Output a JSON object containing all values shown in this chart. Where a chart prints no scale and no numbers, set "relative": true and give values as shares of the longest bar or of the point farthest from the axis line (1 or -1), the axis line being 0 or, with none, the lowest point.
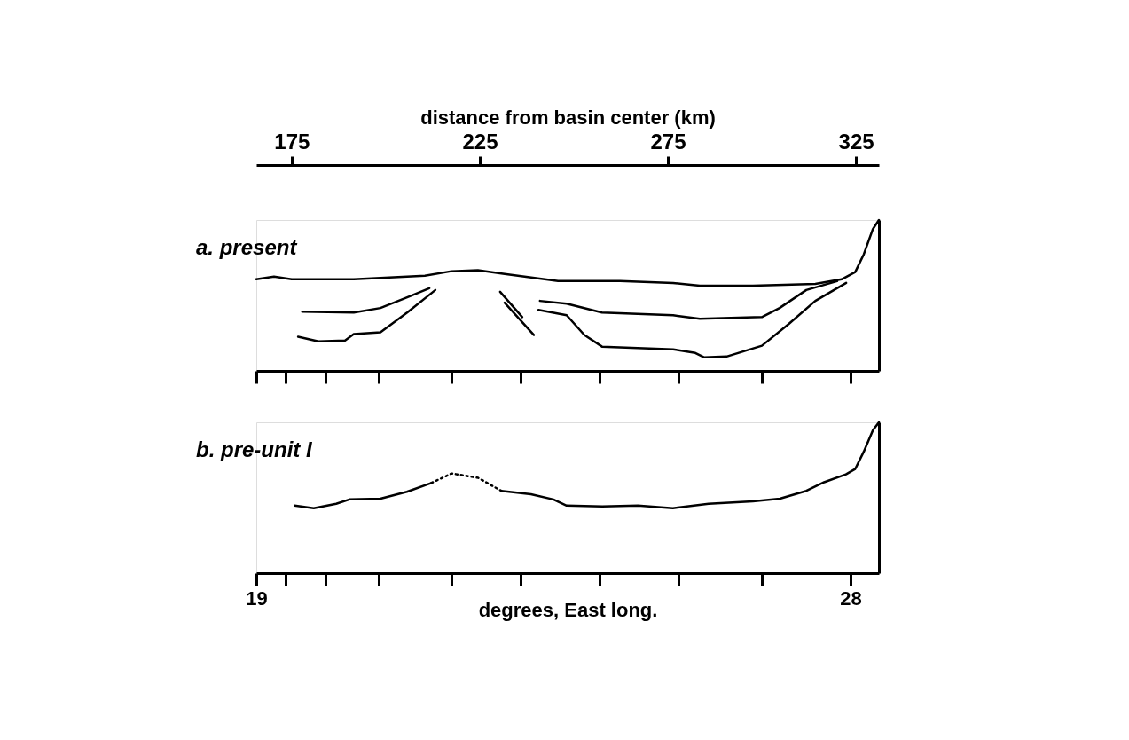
{
  "chart_data": [
    {
      "type": "line",
      "title": "a. present",
      "relative": true,
      "tick_labels": "x",
      "xlabel": "distance from basin center (km)",
      "xlim": [
        165.6,
        331.1
      ],
      "xticks": [
        175,
        225,
        275,
        325
      ],
      "series": [
        {
          "color": "#000000",
          "x": [
            165.6,
            170.3,
            175.0,
            191.5,
            210.4,
            217.5,
            224.5,
            231.6,
            245.8,
            262.3,
            276.4,
            283.5,
            297.6,
            314.2,
            321.2,
            324.8,
            327.1,
            329.5,
            331.1
          ],
          "values": [
            0.607,
            0.625,
            0.607,
            0.607,
            0.631,
            0.661,
            0.667,
            0.643,
            0.595,
            0.595,
            0.583,
            0.565,
            0.565,
            0.577,
            0.607,
            0.655,
            0.774,
            0.94,
            1.0
          ]
        },
        {
          "color": "#000000",
          "x": [
            177.8,
            191.5,
            198.6,
            205.7,
            211.6
          ],
          "values": [
            0.393,
            0.387,
            0.417,
            0.488,
            0.548
          ]
        },
        {
          "color": "#000000",
          "x": [
            176.7,
            182.1,
            189.2,
            191.5,
            198.6,
            205.7,
            213.2
          ],
          "values": [
            0.226,
            0.196,
            0.202,
            0.244,
            0.256,
            0.387,
            0.536
          ]
        },
        {
          "color": "#000000",
          "x": [
            230.4,
            236.3
          ],
          "values": [
            0.524,
            0.357
          ]
        },
        {
          "color": "#000000",
          "x": [
            231.6,
            239.4
          ],
          "values": [
            0.452,
            0.238
          ]
        },
        {
          "color": "#000000",
          "x": [
            241.0,
            248.1,
            257.5,
            276.4,
            283.5,
            300.0,
            304.7,
            311.8,
            320.0
          ],
          "values": [
            0.464,
            0.446,
            0.387,
            0.369,
            0.345,
            0.357,
            0.417,
            0.536,
            0.595
          ]
        },
        {
          "color": "#000000",
          "x": [
            240.6,
            248.1,
            252.8,
            257.5,
            276.4,
            282.3,
            284.7,
            290.6,
            300.0,
            307.1,
            314.2,
            322.4
          ],
          "values": [
            0.405,
            0.369,
            0.238,
            0.161,
            0.143,
            0.119,
            0.089,
            0.095,
            0.167,
            0.31,
            0.464,
            0.583
          ]
        }
      ]
    },
    {
      "type": "line",
      "title": "b. pre-unit I",
      "relative": true,
      "tick_labels": "x",
      "xlabel": "degrees, East long.",
      "xlim": [
        19,
        28.43
      ],
      "xticks": [
        19,
        {
          "value": 19.44,
          "label": null
        },
        {
          "value": 20.05,
          "label": null
        },
        {
          "value": 20.85,
          "label": null
        },
        {
          "value": 21.96,
          "label": null
        },
        {
          "value": 23.0,
          "label": null
        },
        {
          "value": 24.2,
          "label": null
        },
        {
          "value": 25.4,
          "label": null
        },
        {
          "value": 26.66,
          "label": null
        },
        28
      ],
      "series": [
        {
          "color": "#000000",
          "x": [
            19.58,
            19.87,
            20.21,
            20.41,
            20.88,
            21.28,
            21.65
          ],
          "values": [
            0.448,
            0.431,
            0.46,
            0.489,
            0.494,
            0.54,
            0.598
          ]
        },
        {
          "color": "#000000",
          "line_style": "dotted",
          "x": [
            21.65,
            21.96,
            22.36,
            22.71
          ],
          "values": [
            0.598,
            0.661,
            0.632,
            0.546
          ]
        },
        {
          "color": "#000000",
          "x": [
            22.71,
            23.16,
            23.5,
            23.7,
            24.24,
            24.78,
            25.31,
            25.85,
            26.52,
            26.93,
            27.33,
            27.6,
            27.93,
            28.07,
            28.2,
            28.34,
            28.43
          ],
          "values": [
            0.546,
            0.523,
            0.489,
            0.448,
            0.443,
            0.448,
            0.431,
            0.46,
            0.477,
            0.494,
            0.546,
            0.603,
            0.655,
            0.69,
            0.805,
            0.948,
            1.0
          ]
        }
      ]
    }
  ]
}
